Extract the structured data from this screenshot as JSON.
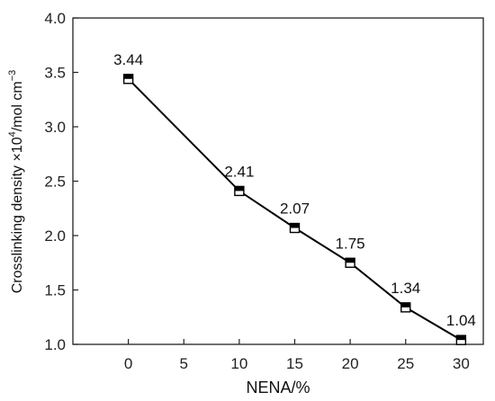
{
  "chart_data": {
    "type": "line",
    "x": [
      0,
      10,
      15,
      20,
      25,
      30
    ],
    "series": [
      {
        "values": [
          3.44,
          2.41,
          2.07,
          1.75,
          1.34,
          1.04
        ]
      }
    ],
    "data_labels": [
      "3.44",
      "2.41",
      "2.07",
      "1.75",
      "1.34",
      "1.04"
    ],
    "xlabel": "NENA/%",
    "ylabel": "Crosslinking density ×10⁴/mol cm⁻³",
    "ylabel_parts": {
      "main": "Crosslinking density ×10",
      "sup1": "4",
      "mid": "/mol cm",
      "sup2": "−3"
    },
    "xlim": [
      -5,
      32
    ],
    "ylim": [
      1.0,
      4.0
    ],
    "x_ticks": [
      0,
      5,
      10,
      15,
      20,
      25,
      30
    ],
    "x_tick_labels": [
      "0",
      "5",
      "10",
      "15",
      "20",
      "25",
      "30"
    ],
    "y_ticks": [
      1.0,
      1.5,
      2.0,
      2.5,
      3.0,
      3.5,
      4.0
    ],
    "y_tick_labels": [
      "1.0",
      "1.5",
      "2.0",
      "2.5",
      "3.0",
      "3.5",
      "4.0"
    ],
    "grid": false,
    "marker": "half-filled-square",
    "line_color": "#000000"
  }
}
